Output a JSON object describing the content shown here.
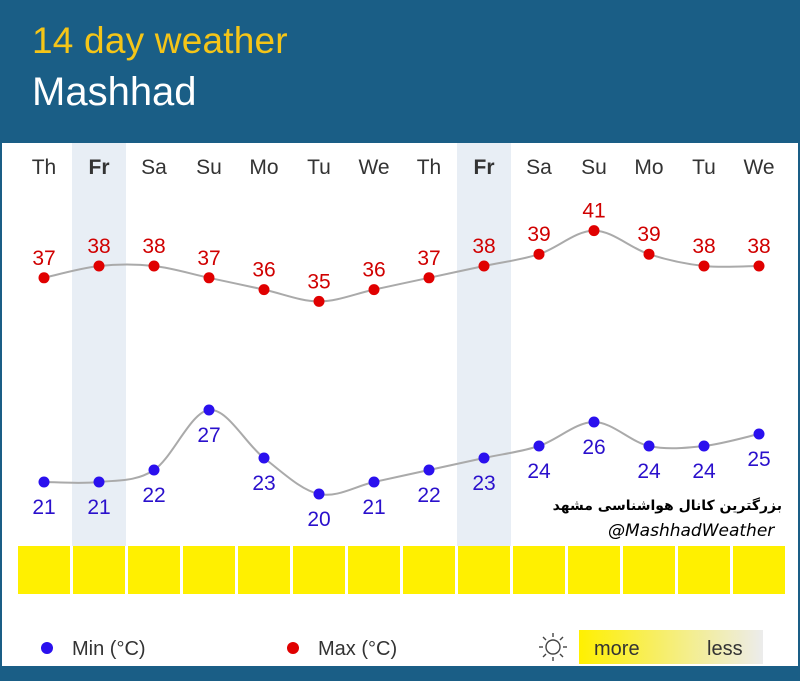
{
  "header": {
    "title": "14 day weather",
    "city": "Mashhad"
  },
  "chart_data": {
    "type": "line",
    "days": [
      "Th",
      "Fr",
      "Sa",
      "Su",
      "Mo",
      "Tu",
      "We",
      "Th",
      "Fr",
      "Sa",
      "Su",
      "Mo",
      "Tu",
      "We"
    ],
    "highlighted_days": [
      1,
      8
    ],
    "series": [
      {
        "name": "Max (°C)",
        "color": "#e00000",
        "label_color": "#d00000",
        "values": [
          37,
          38,
          38,
          37,
          36,
          35,
          36,
          37,
          38,
          39,
          41,
          39,
          38,
          38
        ]
      },
      {
        "name": "Min (°C)",
        "color": "#2a10ee",
        "label_color": "#2a10cc",
        "values": [
          21,
          21,
          22,
          27,
          23,
          20,
          21,
          22,
          23,
          24,
          26,
          24,
          24,
          25
        ]
      }
    ],
    "sunshine": [
      1,
      1,
      1,
      1,
      1,
      1,
      1,
      1,
      1,
      1,
      1,
      1,
      1,
      1
    ],
    "line_color": "#aaaaaa"
  },
  "legend": {
    "min_label": "Min (°C)",
    "max_label": "Max (°C)",
    "more_label": "more",
    "less_label": "less",
    "sun_icon": "sun-icon"
  },
  "watermark": {
    "channel_fa": "بزرگترین کانال هواشناسی مشهد",
    "handle": "@MashhadWeather"
  },
  "colors": {
    "header_bg": "#1a5e86",
    "title": "#f5c518",
    "sun_bar": "#fff000",
    "highlight_col": "#e8eef5"
  }
}
